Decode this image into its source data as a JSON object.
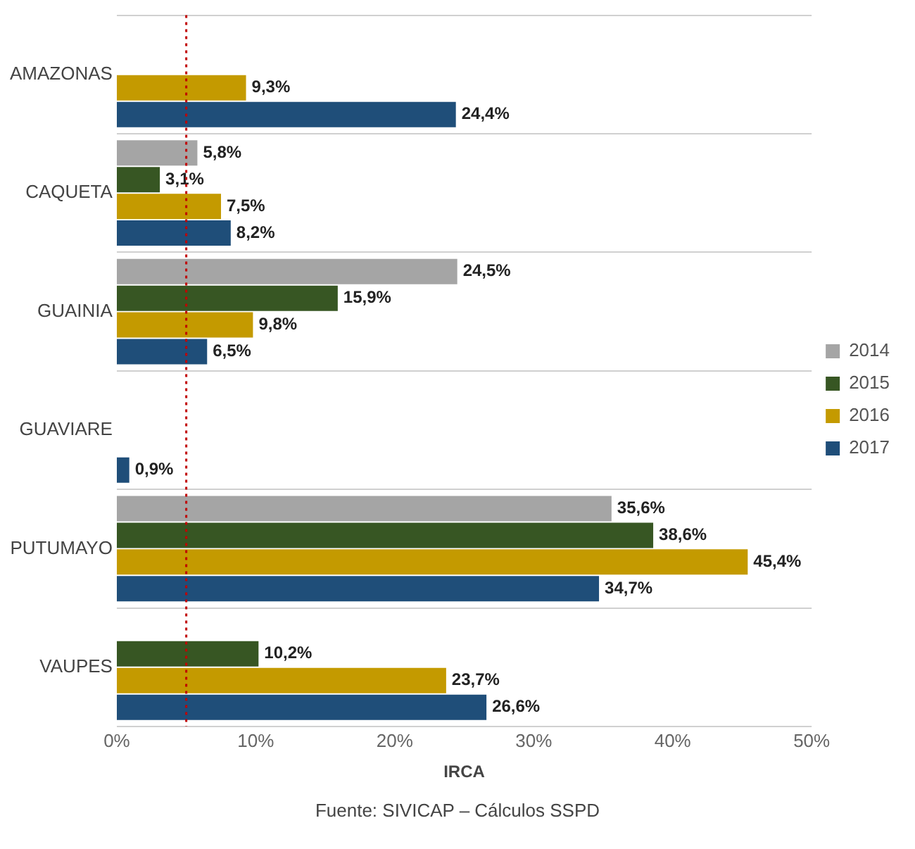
{
  "chart_data": {
    "type": "bar",
    "orientation": "horizontal",
    "xlabel": "IRCA",
    "categories": [
      "AMAZONAS",
      "CAQUETA",
      "GUAINIA",
      "GUAVIARE",
      "PUTUMAYO",
      "VAUPES"
    ],
    "series": [
      {
        "name": "2014",
        "color": "#a5a5a5",
        "values": [
          null,
          5.8,
          24.5,
          null,
          35.6,
          null
        ],
        "value_labels": [
          null,
          "5,8%",
          "24,5%",
          null,
          "35,6%",
          null
        ]
      },
      {
        "name": "2015",
        "color": "#375623",
        "values": [
          null,
          3.1,
          15.9,
          null,
          38.6,
          10.2
        ],
        "value_labels": [
          null,
          "3,1%",
          "15,9%",
          null,
          "38,6%",
          "10,2%"
        ]
      },
      {
        "name": "2016",
        "color": "#c49a00",
        "values": [
          9.3,
          7.5,
          9.8,
          null,
          45.4,
          23.7
        ],
        "value_labels": [
          "9,3%",
          "7,5%",
          "9,8%",
          null,
          "45,4%",
          "23,7%"
        ]
      },
      {
        "name": "2017",
        "color": "#1f4e79",
        "values": [
          24.4,
          8.2,
          6.5,
          0.9,
          34.7,
          26.6
        ],
        "value_labels": [
          "24,4%",
          "8,2%",
          "6,5%",
          "0,9%",
          "34,7%",
          "26,6%"
        ]
      }
    ],
    "xlim": [
      0,
      50
    ],
    "xticks": [
      {
        "value": 0,
        "label": "0%"
      },
      {
        "value": 10,
        "label": "10%"
      },
      {
        "value": 20,
        "label": "20%"
      },
      {
        "value": 30,
        "label": "30%"
      },
      {
        "value": 40,
        "label": "40%"
      },
      {
        "value": 50,
        "label": "50%"
      }
    ],
    "ref_lines": [
      {
        "axis": "x",
        "value": 5,
        "color": "#c00000",
        "line_style": "dotted"
      }
    ],
    "grid": "y",
    "legend": "right",
    "annotations": [
      "Fuente: SIVICAP – Cálculos SSPD"
    ]
  }
}
